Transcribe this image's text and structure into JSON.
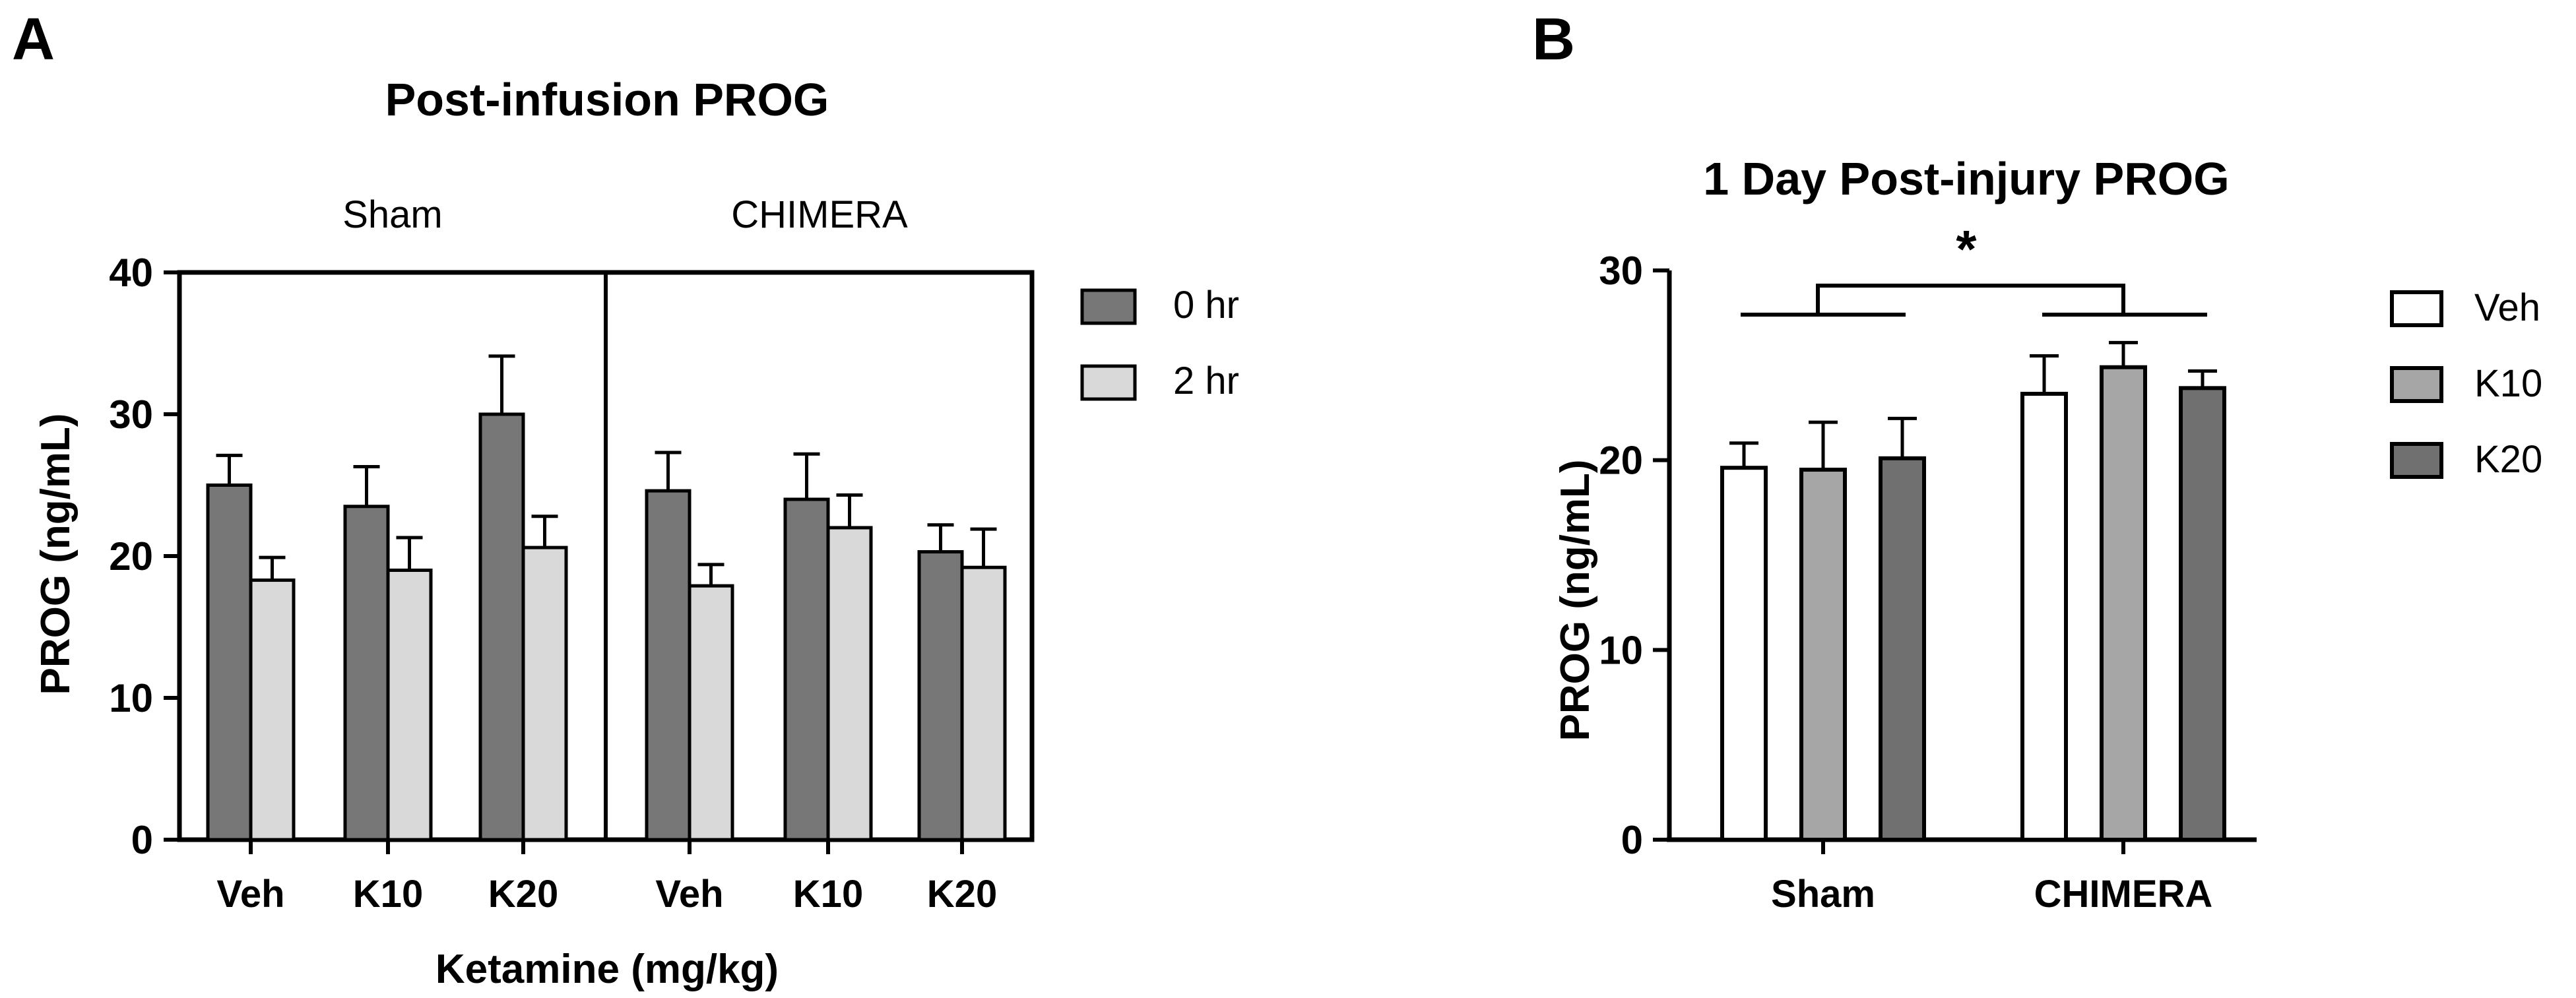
{
  "chart_data": [
    {
      "panel_label": "A",
      "type": "bar",
      "title": "Post-infusion PROG",
      "xlabel": "Ketamine (mg/kg)",
      "ylabel": "PROG (ng/mL)",
      "ylim": [
        0,
        40
      ],
      "yticks": [
        "0",
        "10",
        "20",
        "30",
        "40"
      ],
      "yticks_values": [
        0,
        10,
        20,
        30,
        40
      ],
      "groups": [
        "Sham",
        "CHIMERA"
      ],
      "categories": [
        "Veh",
        "K10",
        "K20",
        "Veh",
        "K10",
        "K20"
      ],
      "legend_position": "right",
      "series": [
        {
          "name": "0 hr",
          "color": "#777777",
          "values": [
            25.0,
            23.5,
            30.0,
            24.6,
            24.0,
            20.3
          ],
          "errors": [
            2.1,
            2.8,
            4.1,
            2.7,
            3.2,
            1.9
          ]
        },
        {
          "name": "2 hr",
          "color": "#d9d9d9",
          "values": [
            18.3,
            19.0,
            20.6,
            17.9,
            22.0,
            19.2
          ],
          "errors": [
            1.6,
            2.3,
            2.2,
            1.5,
            2.3,
            2.7
          ]
        }
      ]
    },
    {
      "panel_label": "B",
      "type": "bar",
      "title": "1 Day Post-injury PROG",
      "xlabel": "",
      "ylabel": "PROG (ng/mL)",
      "ylim": [
        0,
        30
      ],
      "yticks": [
        "0",
        "10",
        "20",
        "30"
      ],
      "yticks_values": [
        0,
        10,
        20,
        30
      ],
      "categories": [
        "Sham",
        "CHIMERA"
      ],
      "legend_position": "right",
      "annotation": "*",
      "series": [
        {
          "name": "Veh",
          "color": "#ffffff",
          "values": [
            19.6,
            23.5
          ],
          "errors": [
            1.3,
            2.0
          ]
        },
        {
          "name": "K10",
          "color": "#a6a6a6",
          "values": [
            19.5,
            24.9
          ],
          "errors": [
            2.5,
            1.3
          ]
        },
        {
          "name": "K20",
          "color": "#707070",
          "values": [
            20.1,
            23.8
          ],
          "errors": [
            2.1,
            0.9
          ]
        }
      ]
    }
  ]
}
